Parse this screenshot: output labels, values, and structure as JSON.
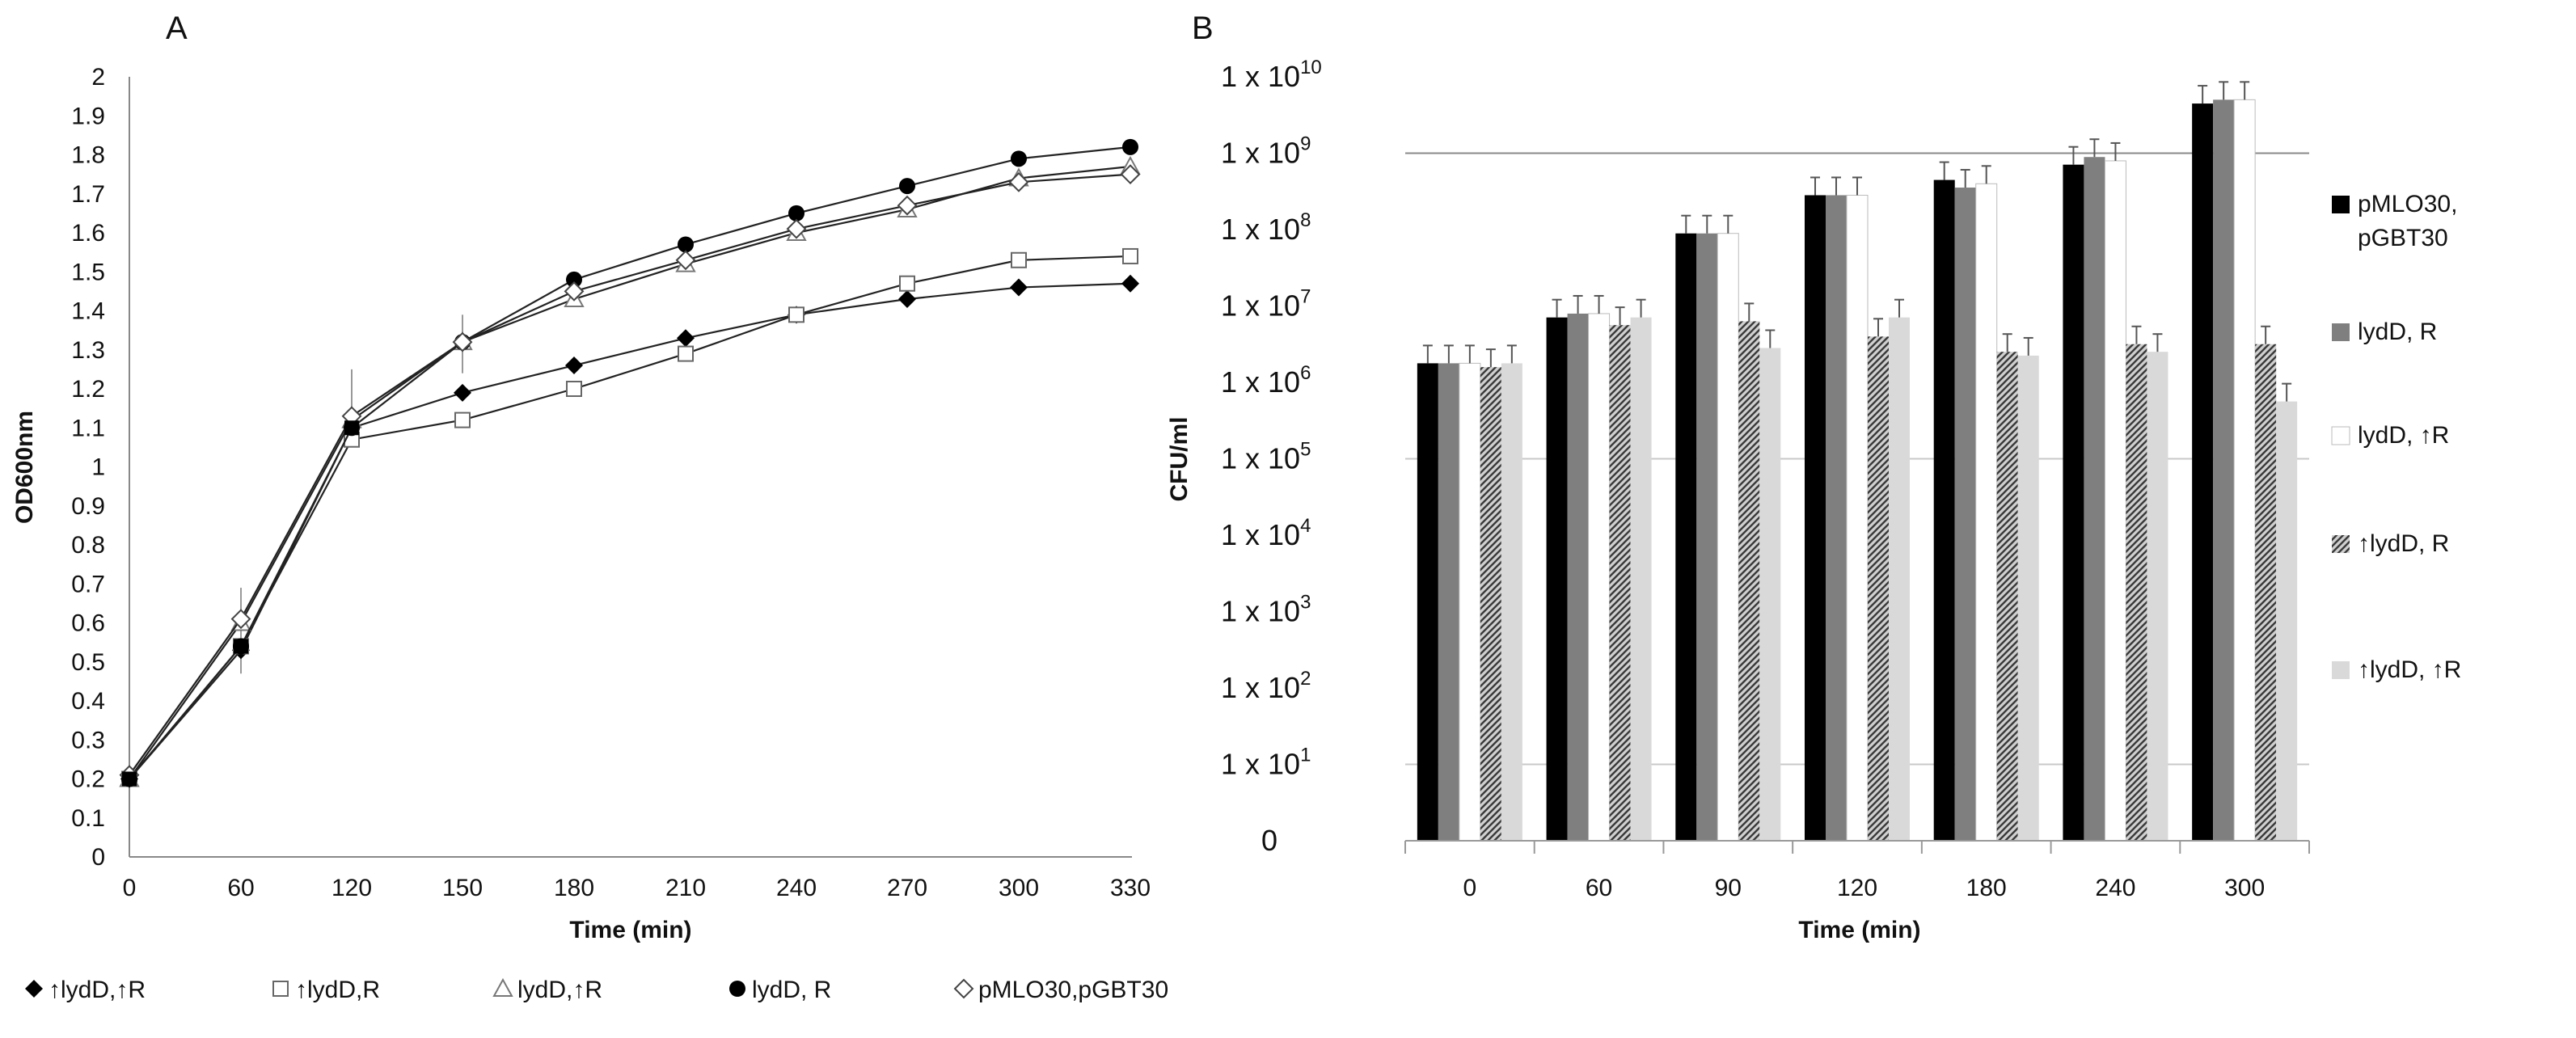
{
  "chart_data": [
    {
      "panel": "A",
      "type": "line",
      "xlabel": "Time (min)",
      "ylabel": "OD600nm",
      "x": [
        0,
        60,
        120,
        150,
        180,
        210,
        240,
        270,
        300,
        330
      ],
      "ylim": [
        0,
        2
      ],
      "yticks": [
        "0",
        "0.1",
        "0.2",
        "0.3",
        "0.4",
        "0.5",
        "0.6",
        "0.7",
        "0.8",
        "0.9",
        "1",
        "1.1",
        "1.2",
        "1.3",
        "1.4",
        "1.5",
        "1.6",
        "1.7",
        "1.8",
        "1.9",
        "2"
      ],
      "xticks": [
        "0",
        "60",
        "120",
        "150",
        "180",
        "210",
        "240",
        "270",
        "300",
        "330"
      ],
      "grid": false,
      "legend_position": "bottom",
      "series": [
        {
          "name": "↑lydD,↑R",
          "marker": "diamond",
          "values": [
            0.2,
            0.53,
            1.1,
            1.19,
            1.26,
            1.33,
            1.39,
            1.43,
            1.46,
            1.47
          ]
        },
        {
          "name": "↑lydD,R",
          "marker": "square-open",
          "values": [
            0.2,
            0.54,
            1.07,
            1.12,
            1.2,
            1.29,
            1.39,
            1.47,
            1.53,
            1.54
          ]
        },
        {
          "name": "lydD,↑R",
          "marker": "triangle-open",
          "values": [
            0.2,
            0.6,
            1.12,
            1.32,
            1.43,
            1.52,
            1.6,
            1.66,
            1.74,
            1.77
          ]
        },
        {
          "name": "lydD, R",
          "marker": "circle",
          "values": [
            0.2,
            0.54,
            1.1,
            1.32,
            1.48,
            1.57,
            1.65,
            1.72,
            1.79,
            1.82
          ]
        },
        {
          "name": "pMLO30,pGBT30",
          "marker": "diamond-open",
          "values": [
            0.21,
            0.61,
            1.13,
            1.32,
            1.45,
            1.53,
            1.61,
            1.67,
            1.73,
            1.75
          ]
        }
      ]
    },
    {
      "panel": "B",
      "type": "bar",
      "xlabel": "Time (min)",
      "ylabel": "CFU/ml",
      "scale": "log10",
      "categories": [
        "0",
        "60",
        "90",
        "120",
        "180",
        "240",
        "300"
      ],
      "ylim": [
        0,
        10
      ],
      "ytick_labels": [
        {
          "base": "1 x 10",
          "exp": ""
        },
        {
          "base": "1 x 10",
          "exp": "1"
        },
        {
          "base": "1 x 10",
          "exp": "2"
        },
        {
          "base": "1 x 10",
          "exp": "3"
        },
        {
          "base": "1 x 10",
          "exp": "4"
        },
        {
          "base": "1 x 10",
          "exp": "5"
        },
        {
          "base": "1 x 10",
          "exp": "6"
        },
        {
          "base": "1 x 10",
          "exp": "7"
        },
        {
          "base": "1 x 10",
          "exp": "8"
        },
        {
          "base": "1 x 10",
          "exp": "9"
        },
        {
          "base": "1 x 10",
          "exp": "10"
        }
      ],
      "zero_label": "0",
      "legend_position": "right",
      "series": [
        {
          "name": "pMLO30, pGBT30",
          "legend_lines": [
            "pMLO30,",
            "pGBT30"
          ],
          "color": "#000000",
          "pattern": "solid",
          "values_log10": [
            6.25,
            6.85,
            7.95,
            8.45,
            8.65,
            8.85,
            9.65
          ]
        },
        {
          "name": "lydD, R",
          "legend_lines": [
            "lydD, R"
          ],
          "color": "#7f7f7f",
          "pattern": "solid",
          "values_log10": [
            6.25,
            6.9,
            7.95,
            8.45,
            8.55,
            8.95,
            9.7
          ]
        },
        {
          "name": "lydD, ↑R",
          "legend_lines": [
            "lydD, ↑R"
          ],
          "color": "#ffffff",
          "pattern": "solid",
          "values_log10": [
            6.25,
            6.9,
            7.95,
            8.45,
            8.6,
            8.9,
            9.7
          ]
        },
        {
          "name": "↑lydD, R",
          "legend_lines": [
            "↑lydD, R"
          ],
          "color": "#8c8c8c",
          "pattern": "hatched",
          "values_log10": [
            6.2,
            6.75,
            6.8,
            6.6,
            6.4,
            6.5,
            6.5
          ]
        },
        {
          "name": "↑lydD, ↑R",
          "legend_lines": [
            "↑lydD, ↑R"
          ],
          "color": "#d9d9d9",
          "pattern": "solid",
          "values_log10": [
            6.25,
            6.85,
            6.45,
            6.85,
            6.35,
            6.4,
            5.75
          ]
        }
      ]
    }
  ],
  "panels": {
    "A": {
      "label": "A"
    },
    "B": {
      "label": "B"
    }
  }
}
